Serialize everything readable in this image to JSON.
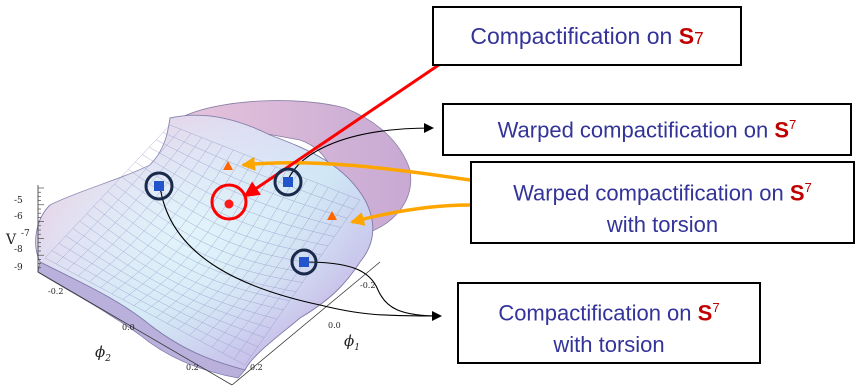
{
  "labels": {
    "box1": {
      "text": "Compactification on ",
      "symbol": "S",
      "superscript": "7"
    },
    "box2": {
      "text": "Warped compactification on ",
      "symbol": "S",
      "superscript": "7"
    },
    "box3": {
      "line1": "Warped compactification on ",
      "symbol": "S",
      "superscript": "7",
      "line2": "with torsion"
    },
    "box4": {
      "line1": "Compactification on ",
      "symbol": "S",
      "superscript": "7",
      "line2": "with torsion"
    }
  },
  "axes": {
    "v_label": "V",
    "v_ticks": [
      "-5",
      "-6",
      "-7",
      "-8",
      "-9"
    ],
    "phi2_label": "ϕ",
    "phi2_sub": "2",
    "phi2_ticks": [
      "-0.2",
      "0.0",
      "0.2"
    ],
    "phi1_label": "ϕ",
    "phi1_sub": "1",
    "phi1_ticks": [
      "-0.2",
      "0.0",
      "0.2"
    ]
  },
  "colors": {
    "box_text": "#333399",
    "sphere_symbol": "#c00000",
    "red_arrow": "#ff0000",
    "orange_arrow": "#ffa500",
    "triangle_marker": "#ff6600",
    "square_marker": "#2255cc",
    "circle_marker": "#1a2a4a"
  }
}
